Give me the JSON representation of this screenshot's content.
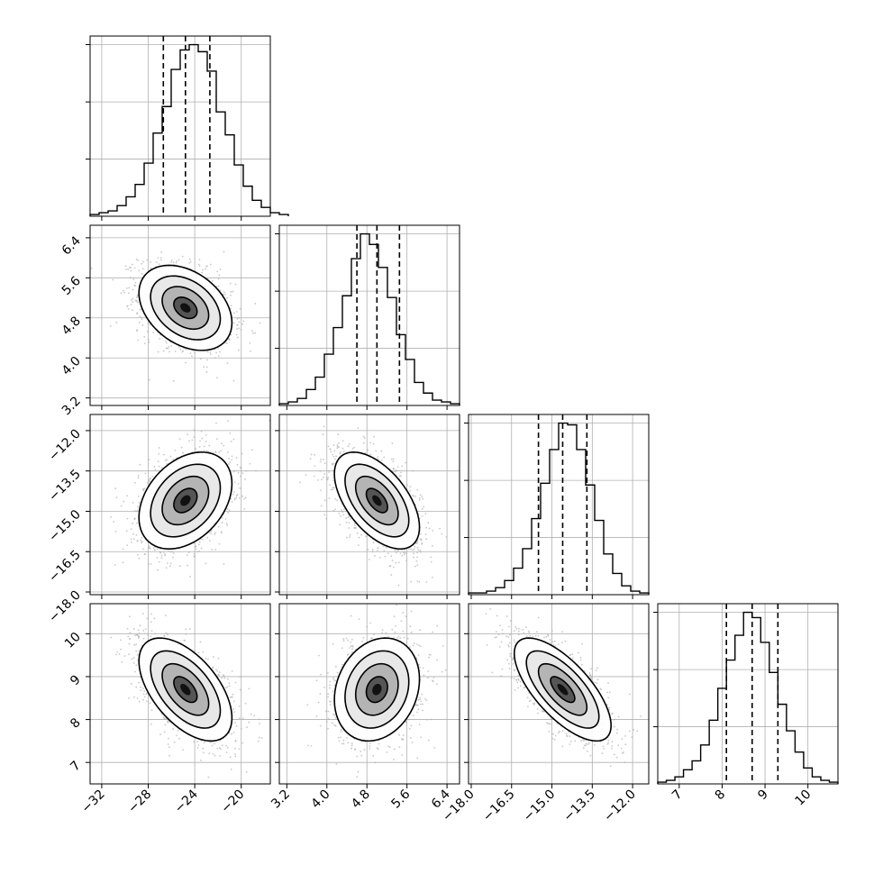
{
  "chart_data": {
    "type": "corner",
    "parameters": [
      {
        "index": 0,
        "range": [
          -33.0,
          -17.5
        ],
        "ticks": [
          -32,
          -28,
          -24,
          -20
        ],
        "tick_labels": [
          "−32",
          "−28",
          "−24",
          "−20"
        ],
        "quantiles": [
          -26.7,
          -24.8,
          -22.7
        ],
        "histogram": {
          "bin_edges_start": -33.0,
          "bin_width": 0.775,
          "counts": [
            1,
            2,
            3,
            6,
            11,
            18,
            30,
            47,
            62,
            83,
            94,
            97,
            93,
            82,
            59,
            46,
            29,
            17,
            9,
            5,
            2,
            1
          ]
        }
      },
      {
        "index": 1,
        "range": [
          3.05,
          6.65
        ],
        "ticks": [
          3.2,
          4.0,
          4.8,
          5.6,
          6.4
        ],
        "tick_labels": [
          "3.2",
          "4.0",
          "4.8",
          "5.6",
          "6.4"
        ],
        "quantiles": [
          4.6,
          5.0,
          5.45
        ],
        "histogram": {
          "bin_edges_start": 3.05,
          "bin_width": 0.18,
          "counts": [
            1,
            2,
            4,
            9,
            16,
            29,
            44,
            62,
            83,
            97,
            91,
            78,
            61,
            40,
            26,
            13,
            7,
            3,
            2,
            1
          ]
        }
      },
      {
        "index": 2,
        "range": [
          -18.1,
          -11.4
        ],
        "ticks": [
          -18.0,
          -16.5,
          -15.0,
          -13.5,
          -12.0
        ],
        "tick_labels": [
          "−18.0",
          "−16.5",
          "−15.0",
          "−13.5",
          "−12.0"
        ],
        "quantiles": [
          -15.5,
          -14.6,
          -13.7
        ],
        "histogram": {
          "bin_edges_start": -18.1,
          "bin_width": 0.335,
          "counts": [
            1,
            1,
            2,
            4,
            8,
            15,
            26,
            43,
            63,
            82,
            97,
            96,
            82,
            62,
            42,
            23,
            12,
            5,
            2,
            1
          ]
        }
      },
      {
        "index": 3,
        "range": [
          6.5,
          10.7
        ],
        "ticks": [
          7,
          8,
          9,
          10
        ],
        "tick_labels": [
          "7",
          "8",
          "9",
          "10"
        ],
        "quantiles": [
          8.1,
          8.7,
          9.3
        ],
        "histogram": {
          "bin_edges_start": 6.5,
          "bin_width": 0.2,
          "counts": [
            1,
            2,
            4,
            8,
            13,
            22,
            36,
            54,
            70,
            84,
            97,
            94,
            80,
            63,
            45,
            30,
            18,
            9,
            4,
            2,
            1
          ]
        }
      }
    ],
    "correlations": [
      {
        "pair": [
          1,
          0
        ],
        "r": -0.35
      },
      {
        "pair": [
          2,
          0
        ],
        "r": 0.35
      },
      {
        "pair": [
          2,
          1
        ],
        "r": -0.55
      },
      {
        "pair": [
          3,
          0
        ],
        "r": -0.55
      },
      {
        "pair": [
          3,
          1
        ],
        "r": 0.2
      },
      {
        "pair": [
          3,
          2
        ],
        "r": -0.7
      }
    ],
    "contour_levels_sigma": [
      0.5,
      1.0,
      1.5,
      2.0
    ],
    "quantile_line_style": "dashed",
    "grid": true,
    "colors": {
      "line": "#000000",
      "points": "#b0b0b0",
      "grid": "#b0b0b0"
    }
  }
}
